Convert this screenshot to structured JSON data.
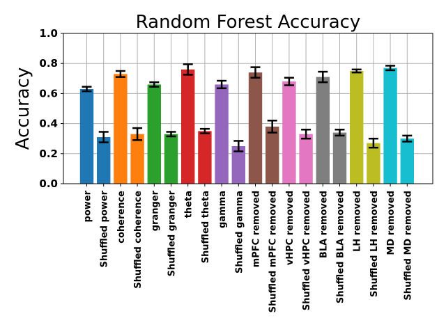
{
  "chart_data": {
    "type": "bar",
    "title": "Random Forest Accuracy",
    "ylabel": "Accuracy",
    "xlabel": "",
    "ylim": [
      0.0,
      1.0
    ],
    "yticks": [
      "0.0",
      "0.2",
      "0.4",
      "0.6",
      "0.8",
      "1.0"
    ],
    "grid": true,
    "categories": [
      "power",
      "Shuffled power",
      "coherence",
      "Shuffled coherence",
      "granger",
      "Shuffled granger",
      "theta",
      "Shuffled theta",
      "gamma",
      "Shuffled gamma",
      "mPFC removed",
      "Shuffled mPFC removed",
      "vHPC removed",
      "Shuffled vHPC removed",
      "BLA removed",
      "Shuffled BLA removed",
      "LH removed",
      "Shuffled LH removed",
      "MD removed",
      "Shuffled MD removed"
    ],
    "values": [
      0.63,
      0.31,
      0.73,
      0.33,
      0.66,
      0.33,
      0.76,
      0.35,
      0.66,
      0.25,
      0.74,
      0.38,
      0.68,
      0.33,
      0.71,
      0.34,
      0.75,
      0.27,
      0.77,
      0.3
    ],
    "errors": [
      0.015,
      0.035,
      0.02,
      0.04,
      0.015,
      0.015,
      0.035,
      0.015,
      0.025,
      0.035,
      0.035,
      0.04,
      0.025,
      0.03,
      0.035,
      0.02,
      0.01,
      0.03,
      0.015,
      0.02
    ],
    "colors": [
      "#1f77b4",
      "#1f77b4",
      "#ff7f0e",
      "#ff7f0e",
      "#2ca02c",
      "#2ca02c",
      "#d62728",
      "#d62728",
      "#9467bd",
      "#9467bd",
      "#8c564b",
      "#8c564b",
      "#e377c2",
      "#e377c2",
      "#7f7f7f",
      "#7f7f7f",
      "#bcbd22",
      "#bcbd22",
      "#17becf",
      "#17becf"
    ]
  }
}
